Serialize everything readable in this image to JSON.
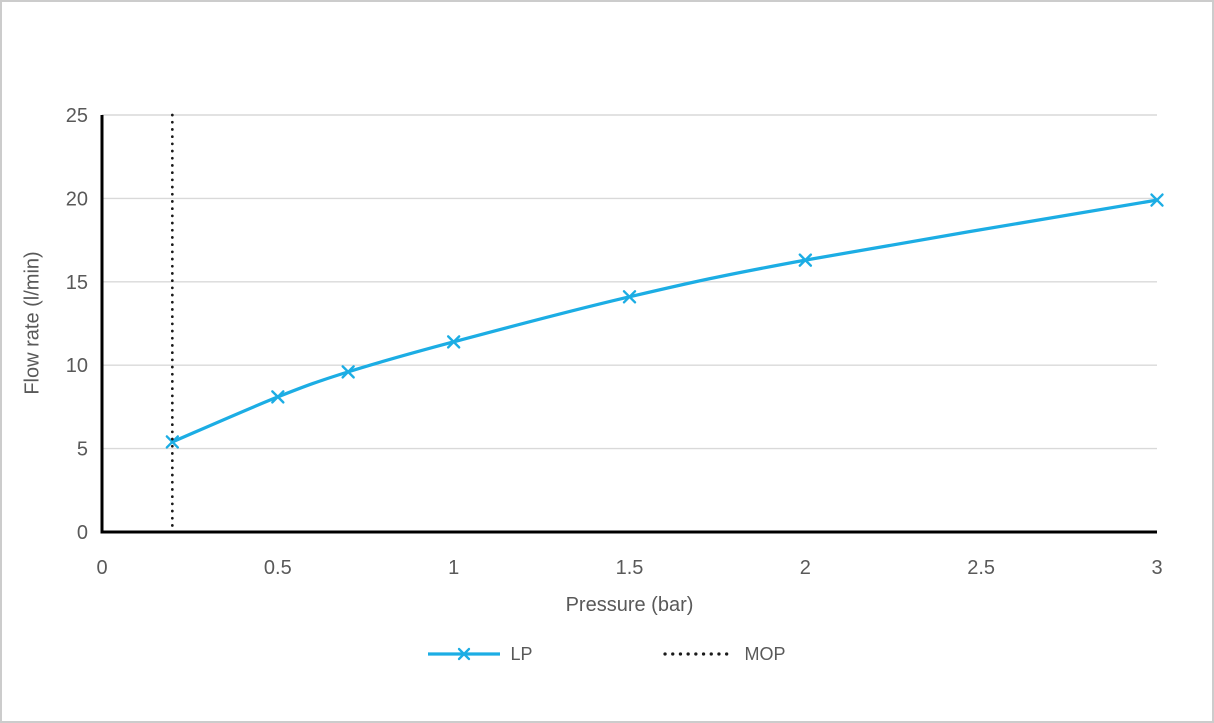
{
  "page": {
    "background": "#FFFFFF",
    "border_color": "#CCCCCC"
  },
  "chart_data": {
    "type": "line",
    "title": "",
    "xlabel": "Pressure (bar)",
    "ylabel": "Flow rate (l/min)",
    "xlim": [
      0,
      3
    ],
    "ylim": [
      0,
      25
    ],
    "x_ticks": [
      0,
      0.5,
      1,
      1.5,
      2,
      2.5,
      3
    ],
    "y_ticks": [
      0,
      5,
      10,
      15,
      20,
      25
    ],
    "grid": "horizontal-only",
    "legend_position": "bottom-center",
    "series": [
      {
        "name": "LP",
        "type": "smooth_line",
        "marker": "x",
        "color": "#1CADE4",
        "x": [
          0.2,
          0.5,
          0.7,
          1,
          1.5,
          2,
          3
        ],
        "y": [
          5.4,
          8.1,
          9.6,
          11.4,
          14.1,
          16.3,
          19.9
        ]
      },
      {
        "name": "MOP",
        "type": "vertical_dotted_line",
        "color": "#1A1A1A",
        "x": 0.2
      }
    ],
    "colors": {
      "grid": "#D9D9D9",
      "axis": "#000000",
      "tick_text": "#595959",
      "title_text": "#595959",
      "legend_text": "#595959"
    }
  }
}
